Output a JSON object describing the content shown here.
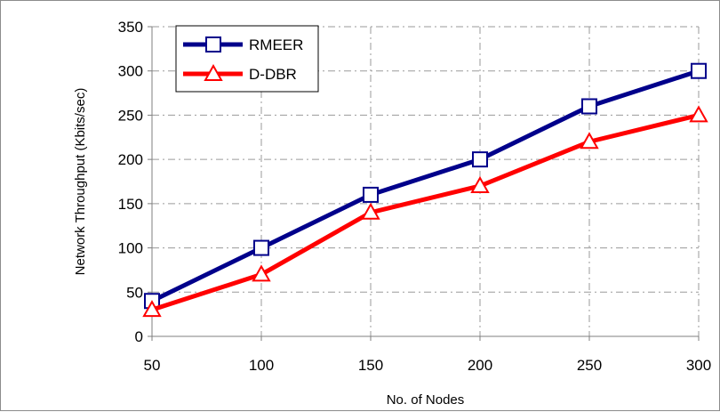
{
  "chart_data": {
    "type": "line",
    "x": [
      50,
      100,
      150,
      200,
      250,
      300
    ],
    "series": [
      {
        "name": "RMEER",
        "values": [
          40,
          100,
          160,
          200,
          260,
          300
        ],
        "color": "#00008b",
        "marker": "square"
      },
      {
        "name": "D-DBR",
        "values": [
          30,
          70,
          140,
          170,
          220,
          250
        ],
        "color": "#ff0000",
        "marker": "triangle"
      }
    ],
    "xlabel": "No. of Nodes",
    "ylabel": "Network Throughput (Kbits/sec)",
    "xticks": [
      "50",
      "100",
      "150",
      "200",
      "250",
      "300"
    ],
    "yticks": [
      "0",
      "50",
      "100",
      "150",
      "200",
      "250",
      "300",
      "350"
    ],
    "xlim": [
      50,
      300
    ],
    "ylim": [
      0,
      350
    ],
    "grid": true,
    "legend_position": "top-left"
  }
}
